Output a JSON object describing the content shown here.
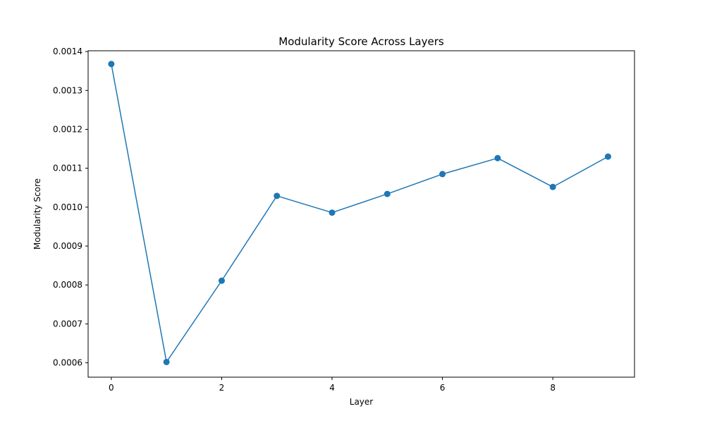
{
  "chart_data": {
    "type": "line",
    "title": "Modularity Score Across Layers",
    "xlabel": "Layer",
    "ylabel": "Modularity Score",
    "x": [
      0,
      1,
      2,
      3,
      4,
      5,
      6,
      7,
      8,
      9
    ],
    "series": [
      {
        "values": [
          0.001368,
          0.000602,
          0.000811,
          0.001029,
          0.000986,
          0.001034,
          0.001085,
          0.001126,
          0.001052,
          0.00113
        ],
        "color": "#1f77b4",
        "marker": "circle"
      }
    ],
    "xlim": [
      -0.42,
      9.48
    ],
    "ylim": [
      0.000563,
      0.001402
    ],
    "x_ticks": [
      0,
      2,
      4,
      6,
      8
    ],
    "x_tick_labels": [
      "0",
      "2",
      "4",
      "6",
      "8"
    ],
    "y_ticks": [
      0.0006,
      0.0007,
      0.0008,
      0.0009,
      0.001,
      0.0011,
      0.0012,
      0.0013,
      0.0014
    ],
    "y_tick_labels": [
      "0.0006",
      "0.0007",
      "0.0008",
      "0.0009",
      "0.0010",
      "0.0011",
      "0.0012",
      "0.0013",
      "0.0014"
    ],
    "grid": false,
    "legend": false
  }
}
